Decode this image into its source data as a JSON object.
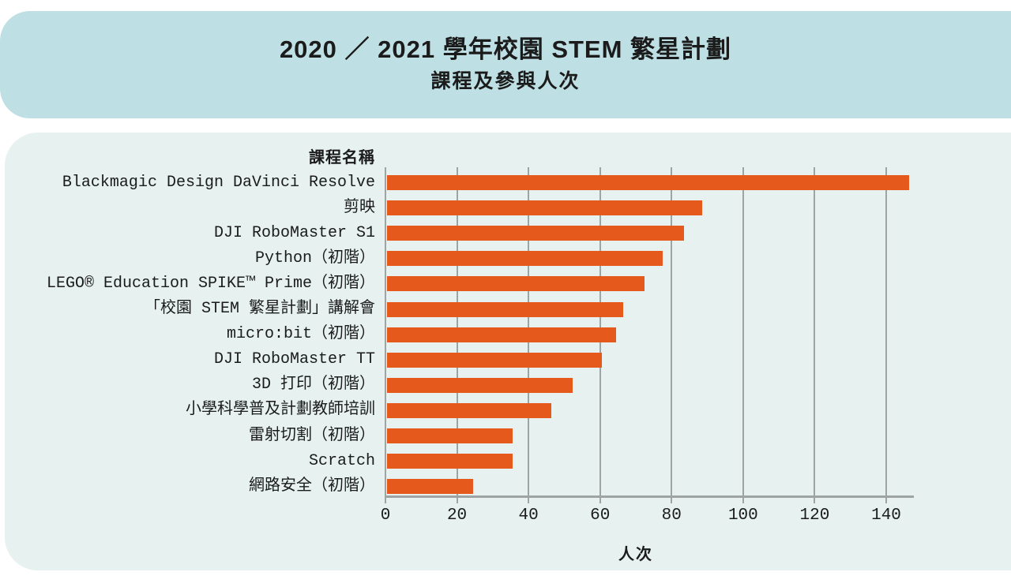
{
  "header": {
    "title": "2020 ／ 2021 學年校園 STEM 繁星計劃",
    "subtitle": "課程及參與人次"
  },
  "chart_data": {
    "type": "bar",
    "orientation": "horizontal",
    "title": "2020 ／ 2021 學年校園 STEM 繁星計劃 課程及參與人次",
    "axis_header": "課程名稱",
    "xlabel": "人次",
    "categories": [
      "Blackmagic Design DaVinci Resolve",
      "剪映",
      "DJI RoboMaster S1",
      "Python（初階）",
      "LEGO® Education SPIKE™ Prime（初階）",
      "「校園 STEM 繁星計劃」講解會",
      "micro:bit（初階）",
      "DJI RoboMaster TT",
      "3D 打印（初階）",
      "小學科學普及計劃教師培訓",
      "雷射切割（初階）",
      "Scratch",
      "網路安全（初階）"
    ],
    "values": [
      146,
      88,
      83,
      77,
      72,
      66,
      64,
      60,
      52,
      46,
      35,
      35,
      24
    ],
    "xticks": [
      0,
      20,
      40,
      60,
      80,
      100,
      120,
      140
    ],
    "xlim": [
      0,
      148
    ],
    "grid": true,
    "legend": "none"
  },
  "colors": {
    "band_bg": "#BEDFE3",
    "panel_bg": "#E6F1F0",
    "bar": "#E5591D",
    "grid": "#9EA4A4",
    "text": "#1B1B1B"
  }
}
